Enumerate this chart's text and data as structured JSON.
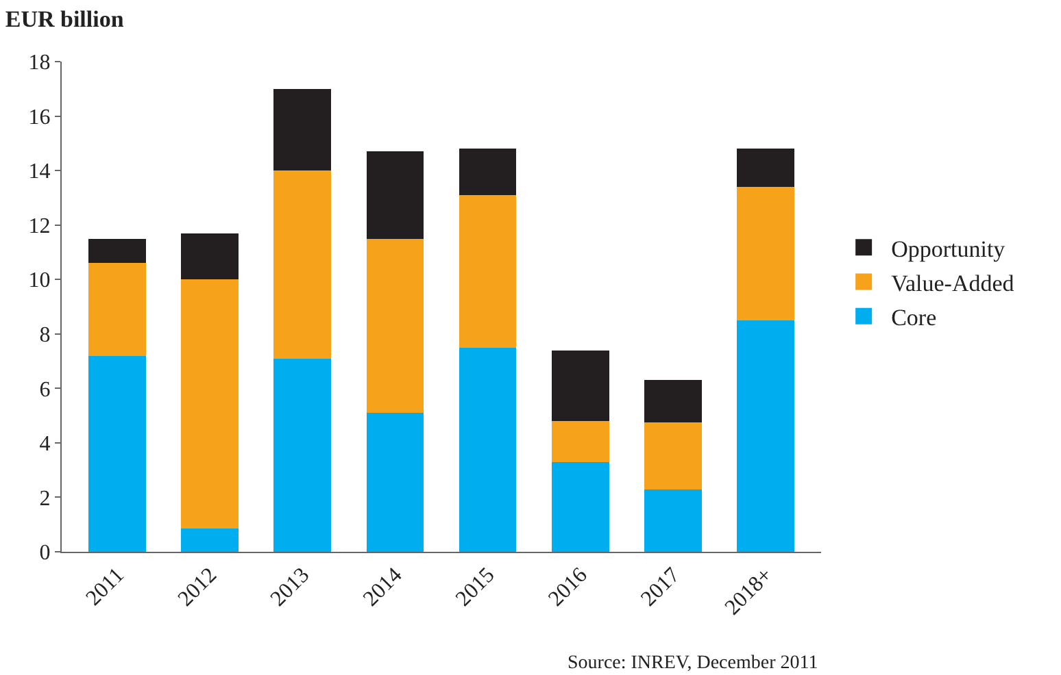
{
  "chart_data": {
    "type": "bar",
    "stacked": true,
    "title": "EUR billion",
    "categories": [
      "2011",
      "2012",
      "2013",
      "2014",
      "2015",
      "2016",
      "2017",
      "2018+"
    ],
    "series": [
      {
        "name": "Core",
        "color": "#00aeef",
        "values": [
          7.2,
          0.85,
          7.1,
          5.1,
          7.5,
          3.3,
          2.3,
          8.5
        ]
      },
      {
        "name": "Value-Added",
        "color": "#f7a21b",
        "values": [
          3.4,
          9.15,
          6.9,
          6.4,
          5.6,
          1.5,
          2.45,
          4.9
        ]
      },
      {
        "name": "Opportunity",
        "color": "#231f20",
        "values": [
          0.9,
          1.7,
          3.0,
          3.2,
          1.7,
          2.6,
          1.55,
          1.4
        ]
      }
    ],
    "ylim": [
      0,
      18
    ],
    "yticks": [
      0,
      2,
      4,
      6,
      8,
      10,
      12,
      14,
      16,
      18
    ],
    "grid": false,
    "legend": "right",
    "annotations": [
      "Source: INREV, December 2011"
    ]
  }
}
